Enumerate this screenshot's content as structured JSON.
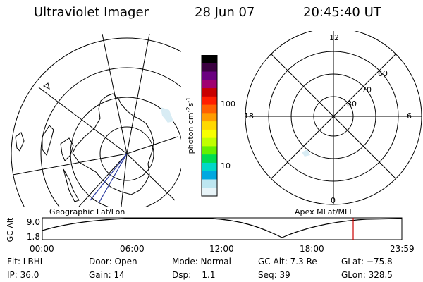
{
  "header": {
    "instrument": "Ultraviolet Imager",
    "date": "28 Jun 07",
    "time": "20:45:40 UT"
  },
  "geo_panel": {
    "label": "Geographic Lat/Lon"
  },
  "colorbar": {
    "label": "photon cm",
    "label_exp1": "-2",
    "label_s": "s",
    "label_exp2": "-1",
    "ticks": [
      "100",
      "10"
    ],
    "colors": [
      "#000000",
      "#3a0040",
      "#6a0080",
      "#a00070",
      "#c80000",
      "#ff1e00",
      "#ff6000",
      "#ff9c00",
      "#ffd800",
      "#f8ff00",
      "#c0ff00",
      "#64f000",
      "#00dc50",
      "#00d8c8",
      "#00a8e0",
      "#bde6f0",
      "#e8f4f8"
    ]
  },
  "polar_panel": {
    "label": "Apex MLat/MLT",
    "mlt_labels": {
      "top": "12",
      "left": "18",
      "right": "6",
      "bottom": "0"
    },
    "lat_labels": [
      "60",
      "70",
      "80"
    ]
  },
  "timeline": {
    "y_label": "GC Alt",
    "y_ticks": [
      "9.0",
      "1.8"
    ],
    "x_ticks": [
      "00:00",
      "06:00",
      "12:00",
      "18:00",
      "23:59"
    ],
    "marker_color": "#cc0000"
  },
  "info": {
    "row1": [
      "Flt: LBHL",
      "Door: Open",
      "Mode: Normal",
      "GC Alt: 7.3 Re",
      "GLat: −75.8"
    ],
    "row2": [
      "IP: 36.0",
      "Gain: 14",
      "Dsp:    1.1",
      "Seq: 39",
      "GLon: 328.5"
    ]
  }
}
